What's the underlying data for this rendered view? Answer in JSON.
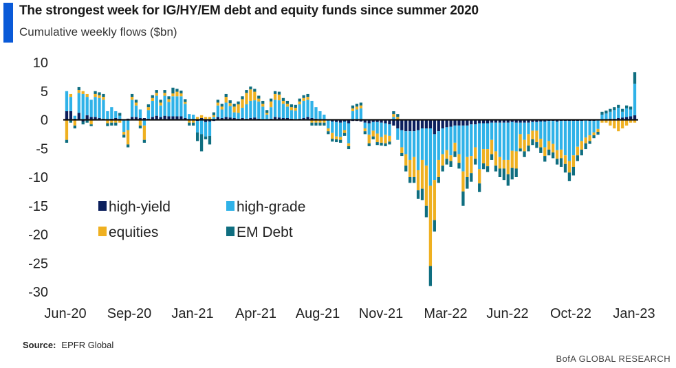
{
  "header": {
    "title": "The strongest week for IG/HY/EM debt and equity funds since summer 2020",
    "subtitle": "Cumulative weekly flows ($bn)"
  },
  "footer": {
    "source_label": "Source:",
    "source_value": "EPFR Global",
    "brand": "BofA GLOBAL RESEARCH"
  },
  "colors": {
    "high_yield": "#0b1f5c",
    "high_grade": "#2fb2e8",
    "equities": "#efb020",
    "em_debt": "#0f6e80",
    "axis": "#111111",
    "accent": "#0a5ad8"
  },
  "chart_data": {
    "type": "bar",
    "stacked": true,
    "title": "The strongest week for IG/HY/EM debt and equity funds since summer 2020",
    "subtitle": "Cumulative weekly flows ($bn)",
    "xlabel": "",
    "ylabel": "",
    "ylim": [
      -30,
      10
    ],
    "yticks": [
      10,
      5,
      0,
      -5,
      -10,
      -15,
      -20,
      -25,
      -30
    ],
    "xtick_labels": [
      "Jun-20",
      "Sep-20",
      "Jan-21",
      "Apr-21",
      "Aug-21",
      "Nov-21",
      "Mar-22",
      "Jun-22",
      "Oct-22",
      "Jan-23"
    ],
    "legend_position": "lower-left",
    "series": [
      {
        "name": "high-yield",
        "color": "#0b1f5c",
        "values": [
          1.5,
          1.5,
          0.2,
          1.2,
          -0.3,
          0.8,
          0.5,
          0.5,
          0.3,
          0.2,
          -0.1,
          0.2,
          0.3,
          0.2,
          -0.1,
          0.2,
          0.5,
          0.5,
          0.3,
          0.3,
          0.2,
          0.5,
          0.7,
          0.5,
          0.7,
          0.6,
          0.6,
          0.6,
          0.6,
          0.3,
          0.0,
          0.1,
          -0.2,
          0.3,
          -0.4,
          -0.3,
          -0.2,
          0.5,
          0.3,
          0.5,
          0.4,
          0.3,
          0.2,
          0.3,
          0.2,
          0.3,
          0.4,
          0.2,
          0.1,
          0.1,
          0.2,
          0.5,
          0.4,
          0.3,
          0.3,
          0.2,
          0.1,
          0.2,
          0.3,
          0.5,
          0.3,
          0.2,
          0.0,
          0.1,
          0.0,
          -0.3,
          -0.4,
          -0.5,
          -0.3,
          -0.6,
          -0.2,
          -0.2,
          -0.3,
          -0.5,
          -0.6,
          -0.4,
          -0.4,
          -0.5,
          -0.6,
          -0.8,
          -1.0,
          -1.5,
          -1.8,
          -2.0,
          -2.0,
          -2.0,
          -1.8,
          -1.5,
          -1.5,
          -1.5,
          -2.5,
          -2.0,
          -1.5,
          -1.3,
          -1.2,
          -1.0,
          -1.0,
          -1.0,
          -1.0,
          -0.8,
          -0.8,
          -0.6,
          -0.6,
          -0.6,
          -0.5,
          -0.5,
          -0.5,
          -0.5,
          -0.5,
          -0.4,
          -0.5,
          -0.5,
          -0.5,
          -0.5,
          -0.4,
          -0.4,
          -0.3,
          -0.3,
          -0.2,
          -0.2,
          -0.3,
          -0.2,
          -0.2,
          -0.2,
          -0.2,
          -0.2,
          -0.2,
          -0.1,
          -0.2,
          -0.2,
          -0.1,
          0.1,
          0.1,
          0.2,
          0.2,
          0.3,
          0.4,
          0.5,
          0.6,
          0.8
        ]
      },
      {
        "name": "high-grade",
        "color": "#2fb2e8",
        "values": [
          3.5,
          2.5,
          0.5,
          3.5,
          4.5,
          3.2,
          3.0,
          3.5,
          3.5,
          3.3,
          1.5,
          2.0,
          1.2,
          0.5,
          -2.0,
          -1.8,
          3.0,
          2.0,
          1.5,
          -1.0,
          1.5,
          2.8,
          3.5,
          2.0,
          3.5,
          2.5,
          3.5,
          3.5,
          3.5,
          2.5,
          1.0,
          0.8,
          -2.0,
          -2.5,
          -2.5,
          -2.5,
          0.5,
          2.0,
          1.5,
          2.5,
          2.0,
          1.0,
          1.0,
          1.8,
          2.5,
          3.0,
          3.0,
          3.0,
          2.2,
          0.8,
          2.0,
          3.0,
          3.0,
          2.5,
          2.0,
          1.5,
          1.5,
          2.5,
          3.0,
          3.0,
          3.0,
          2.0,
          1.5,
          0.8,
          -1.5,
          -2.0,
          -2.5,
          -2.5,
          -1.5,
          -3.5,
          1.5,
          1.8,
          2.0,
          -1.0,
          -2.0,
          -1.5,
          -2.0,
          -2.5,
          -2.0,
          -2.0,
          0.5,
          -2.0,
          -3.0,
          -4.0,
          -5.0,
          -4.5,
          -7.0,
          -5.5,
          -6.5,
          -10.0,
          -8.0,
          -5.0,
          -4.5,
          -4.0,
          -5.0,
          -3.0,
          -5.0,
          -8.0,
          -5.5,
          -5.5,
          -4.0,
          -8.0,
          -4.5,
          -4.5,
          -3.0,
          -5.0,
          -6.0,
          -6.5,
          -6.5,
          -5.0,
          -5.0,
          -2.0,
          -3.0,
          -2.0,
          -1.5,
          -1.5,
          -3.0,
          -4.5,
          -3.5,
          -4.0,
          -5.0,
          -5.0,
          -6.0,
          -7.0,
          -6.0,
          -4.5,
          -3.5,
          -3.0,
          -2.5,
          -2.0,
          -1.5,
          0.8,
          1.0,
          1.2,
          1.5,
          1.8,
          1.0,
          1.5,
          1.2,
          5.5
        ]
      },
      {
        "name": "equities",
        "color": "#efb020",
        "values": [
          -3.5,
          0.5,
          -1.0,
          0.5,
          0.5,
          0.5,
          -0.8,
          0.5,
          0.5,
          0.5,
          -0.5,
          -0.5,
          -0.5,
          -0.5,
          -0.5,
          -2.5,
          0.5,
          0.5,
          -1.0,
          -2.5,
          0.5,
          0.5,
          0.5,
          0.5,
          0.5,
          0.5,
          0.5,
          0.8,
          0.5,
          0.3,
          -0.5,
          -0.5,
          0.5,
          0.5,
          0.5,
          0.5,
          0.3,
          0.5,
          0.5,
          1.0,
          0.5,
          1.0,
          1.5,
          1.5,
          2.0,
          2.0,
          1.5,
          0.5,
          0.5,
          0.3,
          1.0,
          1.0,
          1.0,
          0.5,
          0.5,
          0.5,
          0.5,
          0.5,
          0.5,
          0.5,
          -0.5,
          -0.5,
          -0.5,
          -0.5,
          -0.5,
          -1.0,
          -0.5,
          -0.5,
          -0.5,
          -0.5,
          0.5,
          0.5,
          0.5,
          -0.5,
          -1.5,
          -1.0,
          -1.5,
          -1.0,
          -1.5,
          -1.0,
          0.5,
          0.5,
          -1.0,
          -2.0,
          -3.0,
          -3.5,
          -3.5,
          -5.0,
          -7.0,
          -14.0,
          -7.0,
          -3.0,
          -2.0,
          -1.5,
          -1.0,
          -1.5,
          -1.5,
          -3.5,
          -3.5,
          -3.0,
          -2.0,
          -2.5,
          -2.5,
          -3.0,
          -2.5,
          -2.5,
          -2.0,
          -1.5,
          -2.5,
          -3.0,
          -3.0,
          -2.5,
          -2.0,
          -2.0,
          -1.5,
          -2.0,
          -1.5,
          -1.5,
          -1.5,
          -1.5,
          -1.5,
          -1.5,
          -1.5,
          -2.0,
          -2.0,
          -1.5,
          -1.5,
          -1.0,
          -1.0,
          -0.5,
          -0.5,
          -0.5,
          -0.5,
          -1.0,
          -1.5,
          -2.0,
          -1.5,
          -1.0,
          -0.5,
          -0.5
        ]
      },
      {
        "name": "EM Debt",
        "color": "#0f6e80",
        "values": [
          -0.5,
          -0.5,
          -0.5,
          0.5,
          -0.5,
          -0.5,
          -0.3,
          0.5,
          0.5,
          0.5,
          -0.5,
          -0.5,
          -0.5,
          0.5,
          -0.5,
          -0.5,
          0.5,
          0.5,
          -0.5,
          -0.5,
          0.5,
          0.5,
          0.5,
          0.5,
          0.5,
          0.5,
          1.0,
          0.5,
          0.5,
          0.5,
          -0.5,
          -0.5,
          -1.5,
          -3.0,
          -0.5,
          -1.5,
          0.5,
          0.5,
          0.5,
          0.5,
          0.5,
          0.5,
          0.5,
          0.5,
          0.5,
          0.5,
          0.5,
          0.5,
          0.5,
          0.5,
          0.5,
          0.5,
          0.5,
          0.5,
          0.5,
          0.5,
          0.5,
          0.5,
          0.5,
          0.5,
          -0.5,
          -0.5,
          -0.5,
          -0.5,
          -0.5,
          -0.5,
          -0.5,
          -0.5,
          -0.5,
          -0.5,
          0.5,
          0.5,
          0.5,
          -0.5,
          -0.5,
          -0.5,
          -0.5,
          -0.5,
          -0.5,
          -0.5,
          0.5,
          0.5,
          -0.5,
          -1.0,
          -1.0,
          -1.0,
          -1.5,
          -2.0,
          -2.0,
          -3.5,
          -2.0,
          -1.0,
          -1.0,
          -1.0,
          -1.0,
          -1.0,
          -1.0,
          -2.5,
          -2.0,
          -1.5,
          -1.0,
          -1.5,
          -1.0,
          -1.0,
          -1.0,
          -1.0,
          -1.5,
          -2.0,
          -2.0,
          -2.0,
          -1.5,
          -0.5,
          -1.0,
          -1.0,
          -1.0,
          -1.0,
          -1.0,
          -1.0,
          -1.0,
          -1.0,
          -1.0,
          -1.5,
          -1.5,
          -1.5,
          -1.5,
          -1.0,
          -1.0,
          -1.0,
          -0.5,
          -0.5,
          -0.5,
          0.5,
          0.5,
          0.5,
          0.5,
          0.5,
          0.5,
          0.5,
          0.5,
          2.0
        ]
      }
    ]
  }
}
